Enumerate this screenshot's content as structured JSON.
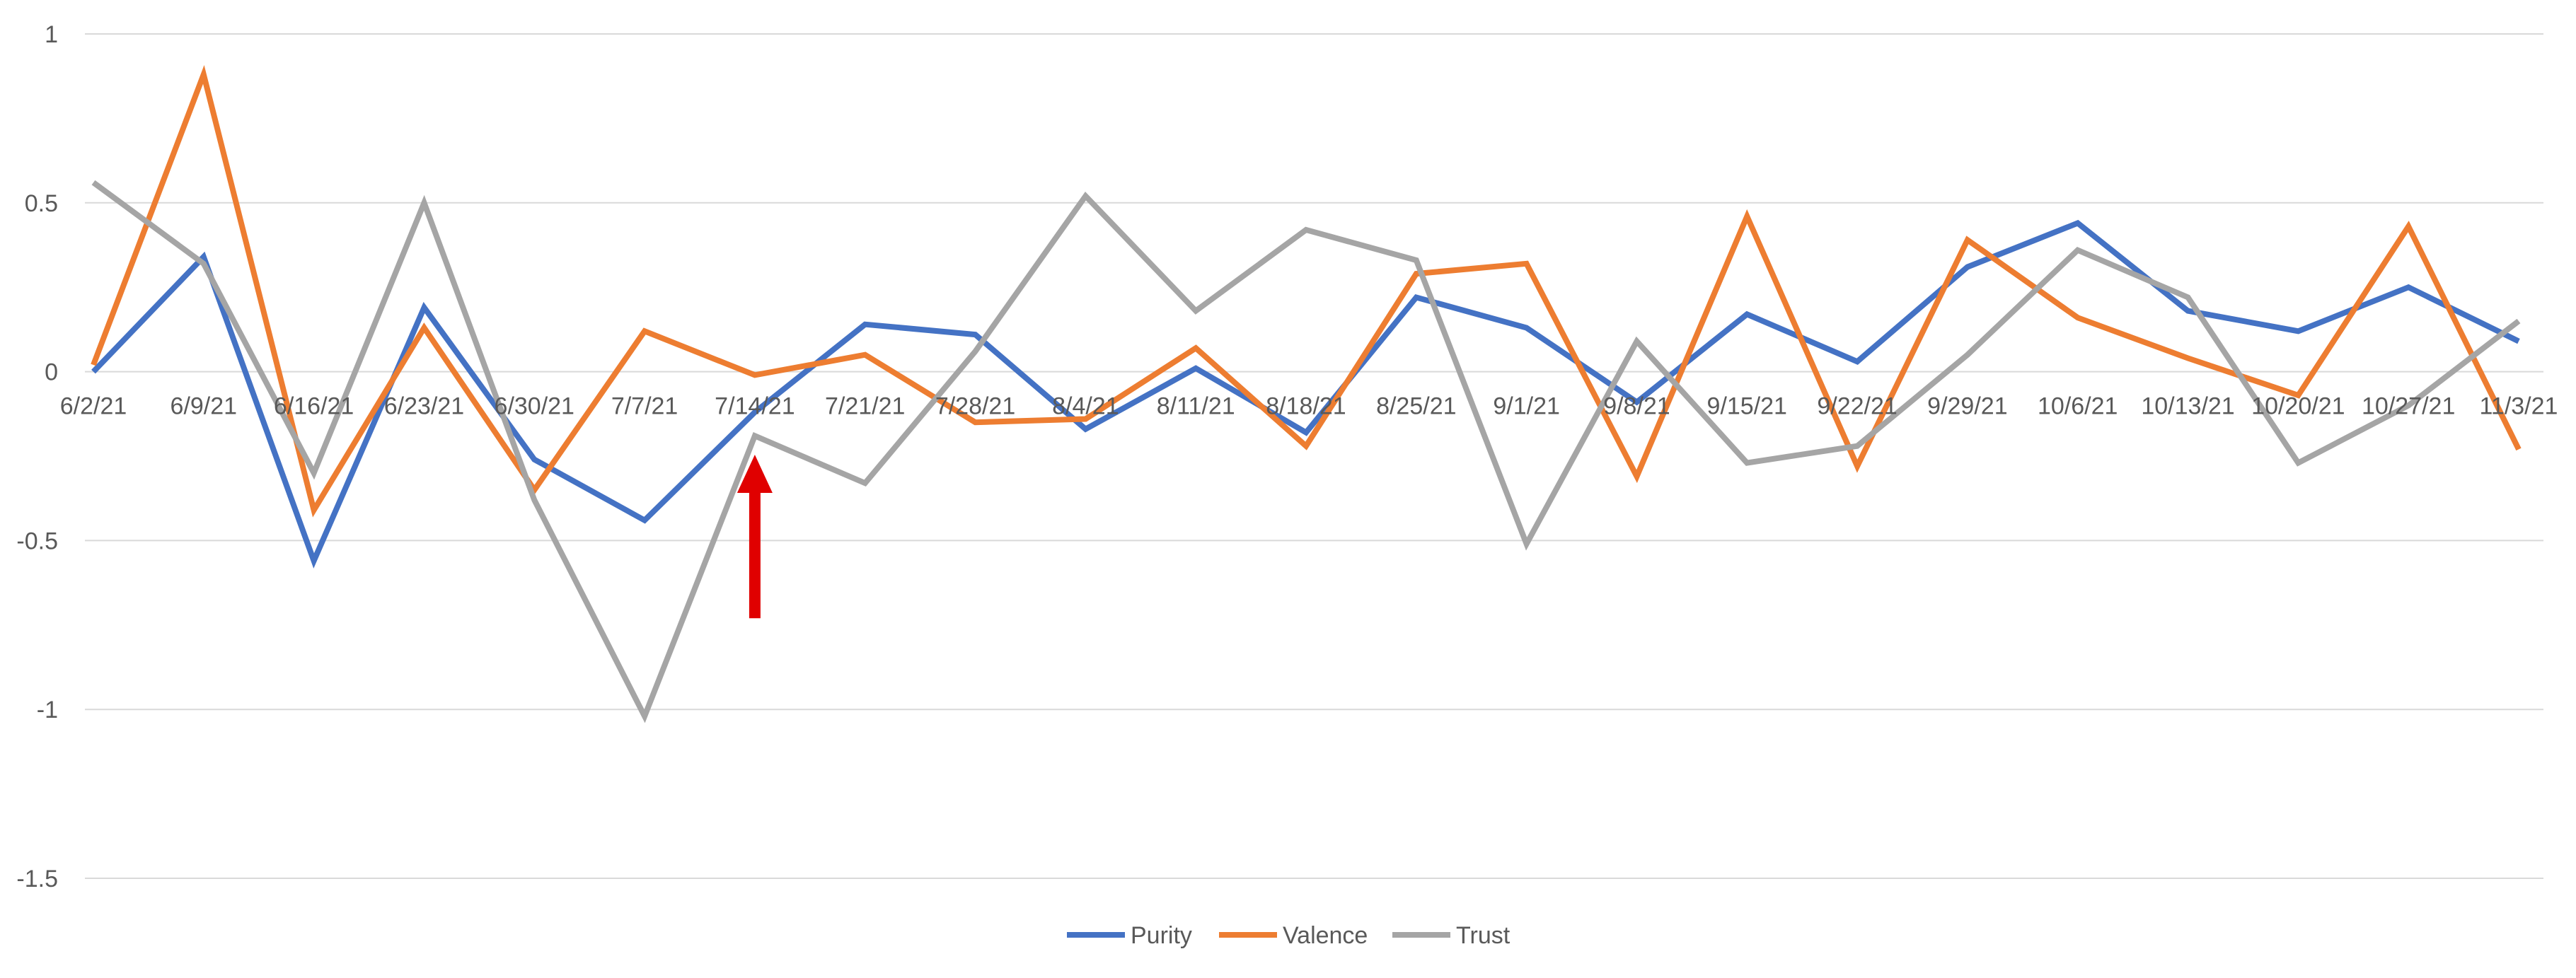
{
  "chart_data": {
    "type": "line",
    "title": "",
    "xlabel": "",
    "ylabel": "",
    "ylim": [
      -1.5,
      1
    ],
    "yticks": [
      1,
      0.5,
      0,
      -0.5,
      -1,
      -1.5
    ],
    "ytick_labels": [
      "1",
      "0.5",
      "0",
      "-0.5",
      "-1",
      "-1.5"
    ],
    "grid": "horizontal",
    "legend_position": "bottom-center",
    "categories": [
      "6/2/21",
      "6/9/21",
      "6/16/21",
      "6/23/21",
      "6/30/21",
      "7/7/21",
      "7/14/21",
      "7/21/21",
      "7/28/21",
      "8/4/21",
      "8/11/21",
      "8/18/21",
      "8/25/21",
      "9/1/21",
      "9/8/21",
      "9/15/21",
      "9/22/21",
      "9/29/21",
      "10/6/21",
      "10/13/21",
      "10/20/21",
      "10/27/21",
      "11/3/21"
    ],
    "series": [
      {
        "name": "Purity",
        "color": "#4472C4",
        "values": [
          0.0,
          0.34,
          -0.56,
          0.19,
          -0.26,
          -0.44,
          -0.12,
          0.14,
          0.11,
          -0.17,
          0.01,
          -0.18,
          0.22,
          0.13,
          -0.09,
          0.17,
          0.03,
          0.31,
          0.44,
          0.18,
          0.12,
          0.25,
          0.09
        ]
      },
      {
        "name": "Valence",
        "color": "#ED7D31",
        "values": [
          0.02,
          0.88,
          -0.41,
          0.13,
          -0.35,
          0.12,
          -0.01,
          0.05,
          -0.15,
          -0.14,
          0.07,
          -0.22,
          0.29,
          0.32,
          -0.31,
          0.46,
          -0.28,
          0.39,
          0.16,
          0.04,
          -0.07,
          0.43,
          -0.23
        ]
      },
      {
        "name": "Trust",
        "color": "#A5A5A5",
        "values": [
          0.56,
          0.32,
          -0.3,
          0.5,
          -0.38,
          -1.02,
          -0.19,
          -0.33,
          0.06,
          0.52,
          0.18,
          0.42,
          0.33,
          -0.51,
          0.09,
          -0.27,
          -0.22,
          0.05,
          0.36,
          0.22,
          -0.27,
          -0.1,
          0.15
        ]
      }
    ],
    "annotations": [
      {
        "type": "arrow",
        "color": "#E00000",
        "direction": "up",
        "category": "7/14/21",
        "y_from": -0.73,
        "y_to": -0.25
      }
    ]
  }
}
